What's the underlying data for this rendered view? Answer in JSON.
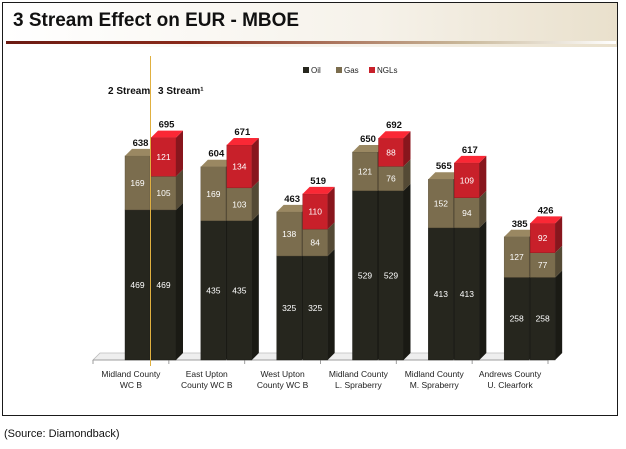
{
  "title": "3 Stream Effect on EUR - MBOE",
  "source": "(Source:  Diamondback)",
  "annotations": {
    "two_stream": "2 Stream",
    "three_stream": "3 Stream¹"
  },
  "colors": {
    "oil": "#26261e",
    "gas": "#7b6d4e",
    "ngl": "#c8202a",
    "divider": "#e0b040"
  },
  "chart_data": {
    "type": "bar",
    "stacked": true,
    "legend_position": "top-center",
    "categories": [
      [
        "Midland County",
        "WC B"
      ],
      [
        "East Upton",
        "County WC B"
      ],
      [
        "West Upton",
        "County WC B"
      ],
      [
        "Midland County",
        "L. Spraberry"
      ],
      [
        "Midland County",
        "M. Spraberry"
      ],
      [
        "Andrews County",
        "U. Clearfork"
      ]
    ],
    "bar_groups": [
      "2 Stream",
      "3 Stream"
    ],
    "series": [
      {
        "name": "Oil",
        "two_stream": [
          469,
          435,
          325,
          529,
          413,
          258
        ],
        "three_stream": [
          469,
          435,
          325,
          529,
          413,
          258
        ]
      },
      {
        "name": "Gas",
        "two_stream": [
          169,
          169,
          138,
          121,
          152,
          127
        ],
        "three_stream": [
          105,
          103,
          84,
          76,
          94,
          77
        ]
      },
      {
        "name": "NGLs",
        "two_stream": [
          0,
          0,
          0,
          0,
          0,
          0
        ],
        "three_stream": [
          121,
          134,
          110,
          88,
          109,
          92
        ]
      }
    ],
    "totals": {
      "two_stream": [
        638,
        604,
        463,
        650,
        565,
        385
      ],
      "three_stream": [
        695,
        671,
        519,
        692,
        617,
        426
      ]
    },
    "ylim": [
      0,
      800
    ],
    "grid": false
  }
}
